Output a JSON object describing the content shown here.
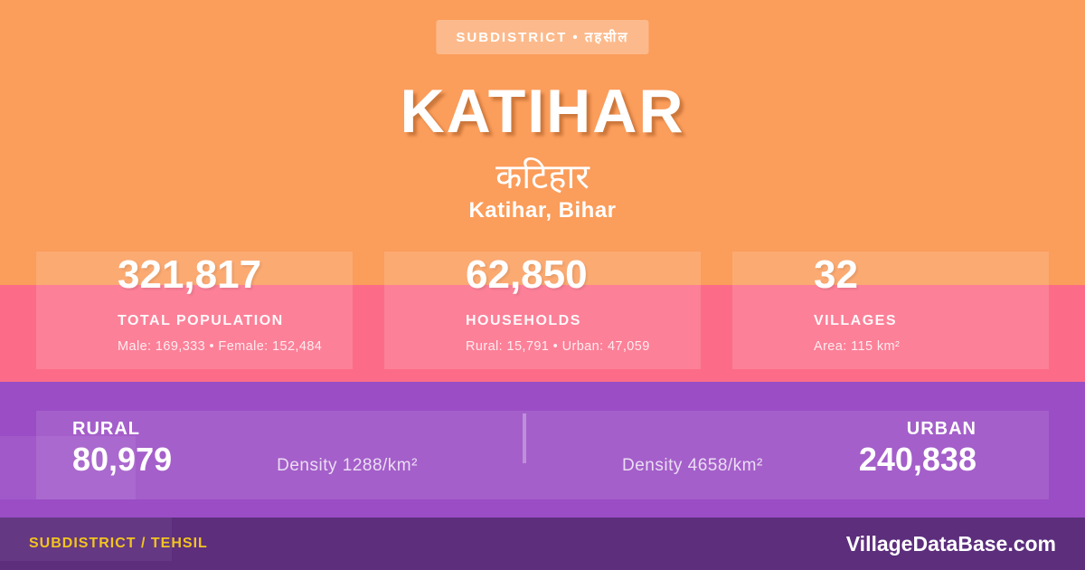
{
  "badge": {
    "label": "SUBDISTRICT • तहसील"
  },
  "header": {
    "title": "KATIHAR",
    "title_hindi": "कटिहार",
    "location": "Katihar, Bihar"
  },
  "stats": [
    {
      "value": "321,817",
      "label": "TOTAL POPULATION",
      "detail": "Male: 169,333 • Female: 152,484"
    },
    {
      "value": "62,850",
      "label": "HOUSEHOLDS",
      "detail": "Rural: 15,791 • Urban: 47,059"
    },
    {
      "value": "32",
      "label": "VILLAGES",
      "detail": "Area: 115 km²"
    }
  ],
  "split": {
    "rural": {
      "label": "RURAL",
      "value": "80,979",
      "density": "Density 1288/km²"
    },
    "urban": {
      "label": "URBAN",
      "value": "240,838",
      "density": "Density 4658/km²"
    }
  },
  "footer": {
    "left": "SUBDISTRICT / TEHSIL",
    "right": "VillageDataBase.com"
  },
  "colors": {
    "orange": "#FB9D5B",
    "pink": "#FC6C88",
    "purple": "#9A4DC5",
    "footer_purple": "#5C2E7C",
    "accent_yellow": "#F2C41F",
    "text": "#FFFFFF"
  }
}
